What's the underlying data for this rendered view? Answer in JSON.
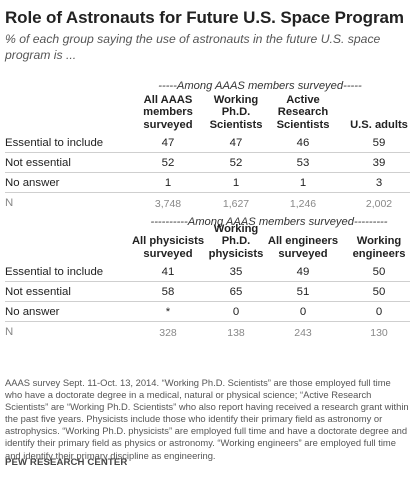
{
  "title": "Role of Astronauts for Future U.S. Space Program",
  "subtitle": "% of each group saying the use of astronauts in the future U.S. space program is ...",
  "chart_data": [
    {
      "type": "table",
      "banner": "-----Among AAAS members surveyed-----",
      "columns": [
        "All AAAS\nmembers\nsurveyed",
        "Working\nPh.D.\nScientists",
        "Active\nResearch\nScientists",
        "U.S. adults"
      ],
      "rows": [
        {
          "label": "Essential to include",
          "values": [
            "47",
            "47",
            "46",
            "59"
          ]
        },
        {
          "label": "Not essential",
          "values": [
            "52",
            "52",
            "53",
            "39"
          ]
        },
        {
          "label": "No answer",
          "values": [
            "1",
            "1",
            "1",
            "3"
          ]
        },
        {
          "label": "N",
          "values": [
            "3,748",
            "1,627",
            "1,246",
            "2,002"
          ]
        }
      ]
    },
    {
      "type": "table",
      "banner": "----------Among AAAS members surveyed---------",
      "columns": [
        "All physicists\nsurveyed",
        "Working\nPh.D.\nphysicists",
        "All engineers\nsurveyed",
        "Working\nengineers"
      ],
      "rows": [
        {
          "label": "Essential to include",
          "values": [
            "41",
            "35",
            "49",
            "50"
          ]
        },
        {
          "label": "Not essential",
          "values": [
            "58",
            "65",
            "51",
            "50"
          ]
        },
        {
          "label": "No answer",
          "values": [
            "*",
            "0",
            "0",
            "0"
          ]
        },
        {
          "label": "N",
          "values": [
            "328",
            "138",
            "243",
            "130"
          ]
        }
      ]
    }
  ],
  "note": "AAAS survey Sept. 11-Oct. 13, 2014. “Working Ph.D. Scientists” are those employed full time who have a doctorate degree in a medical, natural or physical science; “Active Research Scientists” are “Working Ph.D. Scientists” who also report having received a research grant within the past five years. Physicists include those who identify their primary field as astronomy or astrophysics. “Working Ph.D. physicists” are employed full time and have a doctorate degree and identify their primary field as physics or astronomy. “Working engineers” are employed full time and identify their primary discipline as engineering.",
  "source": "PEW RESEARCH CENTER"
}
